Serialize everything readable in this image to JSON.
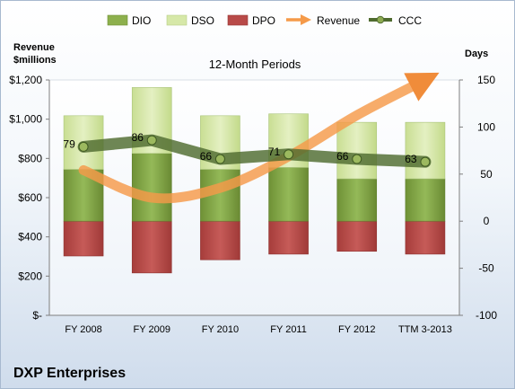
{
  "chart_data": {
    "type": "bar",
    "title": "12-Month Periods",
    "company": "DXP Enterprises",
    "left_axis": {
      "title_line1": "Revenue",
      "title_line2": "$millions",
      "ticks": [
        "$1,200",
        "$1,000",
        "$800",
        "$600",
        "$400",
        "$200",
        "$-"
      ],
      "range": [
        0,
        1200
      ]
    },
    "right_axis": {
      "title": "Days",
      "ticks": [
        "150",
        "100",
        "50",
        "0",
        "-50",
        "-100"
      ],
      "range": [
        -100,
        150
      ]
    },
    "categories": [
      "FY 2008",
      "FY 2009",
      "FY 2010",
      "FY 2011",
      "FY 2012",
      "TTM 3-2013"
    ],
    "series": [
      {
        "name": "DIO",
        "axis": "days",
        "color": "#7fa441",
        "values": [
          55,
          72,
          55,
          57,
          45,
          45
        ]
      },
      {
        "name": "DSO",
        "axis": "days",
        "color": "#d6e8a8",
        "values": [
          57,
          70,
          57,
          57,
          60,
          60
        ]
      },
      {
        "name": "DPO",
        "axis": "days",
        "color": "#b84a48",
        "values": [
          -37,
          -55,
          -41,
          -35,
          -32,
          -35
        ]
      },
      {
        "name": "Revenue",
        "axis": "revenue",
        "color": "#f59a49",
        "values": [
          740,
          600,
          650,
          810,
          1020,
          1200
        ]
      },
      {
        "name": "CCC",
        "axis": "days",
        "color": "#4f6b2f",
        "values": [
          79,
          86,
          66,
          71,
          66,
          63
        ]
      }
    ],
    "ccc_labels": [
      "79",
      "86",
      "66",
      "71",
      "66",
      "63"
    ],
    "colors": {
      "dio": "#7fa441",
      "dso": "#d6e8a8",
      "dpo": "#b84a48",
      "revenue": "#f59a49",
      "ccc": "#4f6b2f"
    }
  }
}
